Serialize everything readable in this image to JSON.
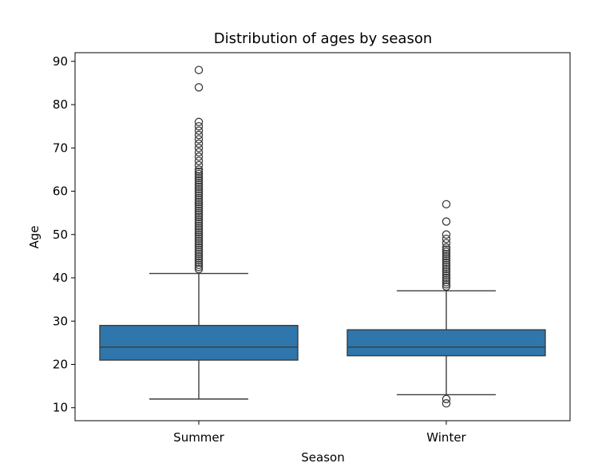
{
  "chart_data": {
    "type": "box",
    "title": "Distribution of ages by season",
    "xlabel": "Season",
    "ylabel": "Age",
    "ylim": [
      7,
      92
    ],
    "yticks": [
      "10",
      "20",
      "30",
      "40",
      "50",
      "60",
      "70",
      "80",
      "90"
    ],
    "grid": false,
    "color": "#2e76ab",
    "edge_color": "#3d3d3d",
    "categories": [
      "Summer",
      "Winter"
    ],
    "boxes": [
      {
        "category": "Summer",
        "whisker_low": 12,
        "q1": 21,
        "median": 24,
        "q3": 29,
        "whisker_high": 41,
        "outliers": [
          42,
          42.5,
          43,
          43.5,
          44,
          44.5,
          45,
          45.5,
          46,
          46.5,
          47,
          47.5,
          48,
          48.5,
          49,
          49.5,
          50,
          50.5,
          51,
          51.5,
          52,
          52.5,
          53,
          53.5,
          54,
          54.5,
          55,
          55.5,
          56,
          56.5,
          57,
          57.5,
          58,
          58.5,
          59,
          59.5,
          60,
          60.5,
          61,
          61.5,
          62,
          62.5,
          63,
          63.5,
          64,
          64.5,
          65,
          66,
          67,
          68,
          69,
          70,
          71,
          72,
          73,
          74,
          75,
          76,
          84,
          88
        ]
      },
      {
        "category": "Winter",
        "whisker_low": 13,
        "q1": 22,
        "median": 24,
        "q3": 28,
        "whisker_high": 37,
        "outliers": [
          11,
          12,
          38,
          38.5,
          39,
          39.5,
          40,
          40.5,
          41,
          41.5,
          42,
          42.5,
          43,
          43.5,
          44,
          44.5,
          45,
          45.5,
          46,
          46.5,
          47,
          48,
          49,
          50,
          53,
          57
        ]
      }
    ]
  }
}
